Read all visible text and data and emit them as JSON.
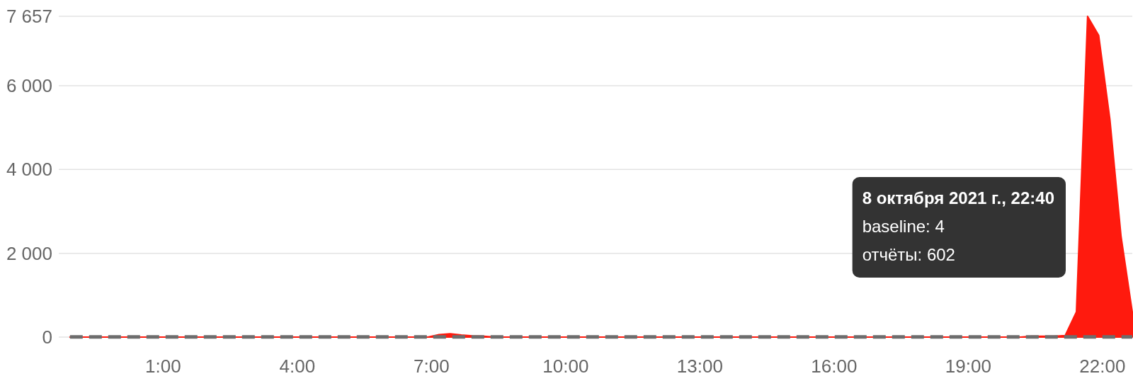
{
  "chart_data": {
    "type": "area",
    "x": [
      "2021-10-07T22:55",
      "2021-10-07T23:10",
      "2021-10-07T23:25",
      "2021-10-07T23:40",
      "2021-10-07T23:55",
      "2021-10-08T00:10",
      "2021-10-08T00:25",
      "2021-10-08T00:40",
      "2021-10-08T00:55",
      "2021-10-08T01:10",
      "2021-10-08T01:25",
      "2021-10-08T01:40",
      "2021-10-08T01:55",
      "2021-10-08T02:10",
      "2021-10-08T02:25",
      "2021-10-08T02:40",
      "2021-10-08T02:55",
      "2021-10-08T03:10",
      "2021-10-08T03:25",
      "2021-10-08T03:40",
      "2021-10-08T03:55",
      "2021-10-08T04:10",
      "2021-10-08T04:25",
      "2021-10-08T04:40",
      "2021-10-08T04:55",
      "2021-10-08T05:10",
      "2021-10-08T05:25",
      "2021-10-08T05:40",
      "2021-10-08T05:55",
      "2021-10-08T06:10",
      "2021-10-08T06:25",
      "2021-10-08T06:40",
      "2021-10-08T06:55",
      "2021-10-08T07:10",
      "2021-10-08T07:25",
      "2021-10-08T07:40",
      "2021-10-08T07:55",
      "2021-10-08T08:10",
      "2021-10-08T08:25",
      "2021-10-08T08:40",
      "2021-10-08T08:55",
      "2021-10-08T09:10",
      "2021-10-08T09:25",
      "2021-10-08T09:40",
      "2021-10-08T09:55",
      "2021-10-08T10:10",
      "2021-10-08T10:25",
      "2021-10-08T10:40",
      "2021-10-08T10:55",
      "2021-10-08T11:10",
      "2021-10-08T11:25",
      "2021-10-08T11:40",
      "2021-10-08T11:55",
      "2021-10-08T12:10",
      "2021-10-08T12:25",
      "2021-10-08T12:40",
      "2021-10-08T12:55",
      "2021-10-08T13:10",
      "2021-10-08T13:25",
      "2021-10-08T13:40",
      "2021-10-08T13:55",
      "2021-10-08T14:10",
      "2021-10-08T14:25",
      "2021-10-08T14:40",
      "2021-10-08T14:55",
      "2021-10-08T15:10",
      "2021-10-08T15:25",
      "2021-10-08T15:40",
      "2021-10-08T15:55",
      "2021-10-08T16:10",
      "2021-10-08T16:25",
      "2021-10-08T16:40",
      "2021-10-08T16:55",
      "2021-10-08T17:10",
      "2021-10-08T17:25",
      "2021-10-08T17:40",
      "2021-10-08T17:55",
      "2021-10-08T18:10",
      "2021-10-08T18:25",
      "2021-10-08T18:40",
      "2021-10-08T18:55",
      "2021-10-08T19:10",
      "2021-10-08T19:25",
      "2021-10-08T19:40",
      "2021-10-08T19:55",
      "2021-10-08T20:10",
      "2021-10-08T20:25",
      "2021-10-08T20:40",
      "2021-10-08T20:55",
      "2021-10-08T21:10",
      "2021-10-08T21:25",
      "2021-10-08T21:40",
      "2021-10-08T21:55",
      "2021-10-08T22:10",
      "2021-10-08T22:25",
      "2021-10-08T22:40"
    ],
    "series": [
      {
        "color": "#ff1a0e",
        "values": [
          0,
          0,
          0,
          0,
          0,
          0,
          0,
          0,
          0,
          0,
          0,
          0,
          0,
          0,
          0,
          0,
          0,
          0,
          0,
          0,
          0,
          0,
          0,
          0,
          0,
          0,
          0,
          0,
          0,
          0,
          0,
          0,
          0,
          60,
          80,
          50,
          30,
          20,
          0,
          0,
          0,
          0,
          0,
          0,
          0,
          0,
          0,
          0,
          0,
          0,
          0,
          0,
          0,
          0,
          0,
          0,
          0,
          0,
          0,
          0,
          0,
          0,
          0,
          0,
          0,
          0,
          0,
          0,
          0,
          0,
          0,
          0,
          0,
          0,
          0,
          0,
          0,
          0,
          0,
          0,
          0,
          0,
          0,
          0,
          0,
          0,
          20,
          20,
          20,
          40,
          600,
          7657,
          7200,
          5200,
          2400,
          602
        ]
      },
      {
        "type": "line",
        "color": "#6d6d6d",
        "line_style": "dashed",
        "x": [
          "2021-10-07T22:55",
          "2021-10-08T22:40"
        ],
        "values": [
          4,
          4
        ]
      }
    ],
    "xlim": [
      "2021-10-07T22:40",
      "2021-10-08T22:40"
    ],
    "xticks": [
      {
        "value": "2021-10-08T01:00",
        "label": "1:00"
      },
      {
        "value": "2021-10-08T04:00",
        "label": "4:00"
      },
      {
        "value": "2021-10-08T07:00",
        "label": "7:00"
      },
      {
        "value": "2021-10-08T10:00",
        "label": "10:00"
      },
      {
        "value": "2021-10-08T13:00",
        "label": "13:00"
      },
      {
        "value": "2021-10-08T16:00",
        "label": "16:00"
      },
      {
        "value": "2021-10-08T19:00",
        "label": "19:00"
      },
      {
        "value": "2021-10-08T22:00",
        "label": "22:00"
      }
    ],
    "ylim": [
      0,
      7657
    ],
    "yticks": [
      0,
      {
        "value": 2000,
        "label": "2 000"
      },
      {
        "value": 4000,
        "label": "4 000"
      },
      {
        "value": 6000,
        "label": "6 000"
      },
      {
        "value": 7657,
        "label": "7 657"
      }
    ],
    "grid": "y",
    "annotations": [
      "8 октября 2021 г., 22:40",
      "baseline: 4",
      "отчёты: 602"
    ]
  }
}
